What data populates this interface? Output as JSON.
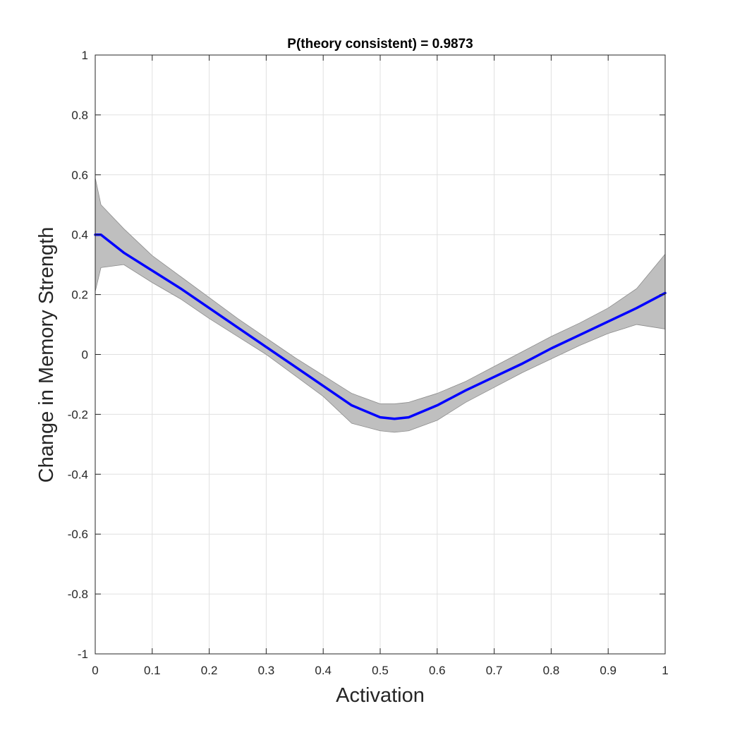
{
  "chart_data": {
    "type": "line",
    "title": "P(theory consistent) = 0.9873",
    "xlabel": "Activation",
    "ylabel": "Change in Memory Strength",
    "xlim": [
      0,
      1
    ],
    "ylim": [
      -1,
      1
    ],
    "grid": true,
    "x_ticks": [
      0,
      0.1,
      0.2,
      0.3,
      0.4,
      0.5,
      0.6,
      0.7,
      0.8,
      0.9,
      1
    ],
    "x_tick_labels": [
      "0",
      "0.1",
      "0.2",
      "0.3",
      "0.4",
      "0.5",
      "0.6",
      "0.7",
      "0.8",
      "0.9",
      "1"
    ],
    "y_ticks": [
      -1,
      -0.8,
      -0.6,
      -0.4,
      -0.2,
      0,
      0.2,
      0.4,
      0.6,
      0.8,
      1
    ],
    "y_tick_labels": [
      "-1",
      "-0.8",
      "-0.6",
      "-0.4",
      "-0.2",
      "0",
      "0.2",
      "0.4",
      "0.6",
      "0.8",
      "1"
    ],
    "series": [
      {
        "x": [
          0,
          0.01,
          0.05,
          0.1,
          0.15,
          0.2,
          0.25,
          0.3,
          0.35,
          0.4,
          0.45,
          0.5,
          0.525,
          0.55,
          0.6,
          0.65,
          0.7,
          0.75,
          0.8,
          0.85,
          0.9,
          0.95,
          1
        ],
        "y": [
          0.4,
          0.4,
          0.34,
          0.28,
          0.22,
          0.155,
          0.09,
          0.025,
          -0.04,
          -0.105,
          -0.17,
          -0.21,
          -0.215,
          -0.21,
          -0.17,
          -0.12,
          -0.075,
          -0.03,
          0.02,
          0.065,
          0.11,
          0.155,
          0.205
        ],
        "lower": [
          0.21,
          0.29,
          0.3,
          0.24,
          0.185,
          0.12,
          0.06,
          0.0,
          -0.07,
          -0.14,
          -0.23,
          -0.255,
          -0.26,
          -0.255,
          -0.22,
          -0.16,
          -0.11,
          -0.06,
          -0.015,
          0.03,
          0.07,
          0.1,
          0.085
        ],
        "upper": [
          0.59,
          0.5,
          0.42,
          0.33,
          0.26,
          0.19,
          0.12,
          0.055,
          -0.01,
          -0.07,
          -0.13,
          -0.165,
          -0.165,
          -0.16,
          -0.13,
          -0.09,
          -0.04,
          0.01,
          0.06,
          0.105,
          0.155,
          0.22,
          0.335
        ]
      }
    ],
    "colors": {
      "line": "#0000ff",
      "band": "#bfbfbf",
      "band_edge": "#8c8c8c",
      "grid": "#e0e0e0",
      "axis": "#262626"
    }
  }
}
